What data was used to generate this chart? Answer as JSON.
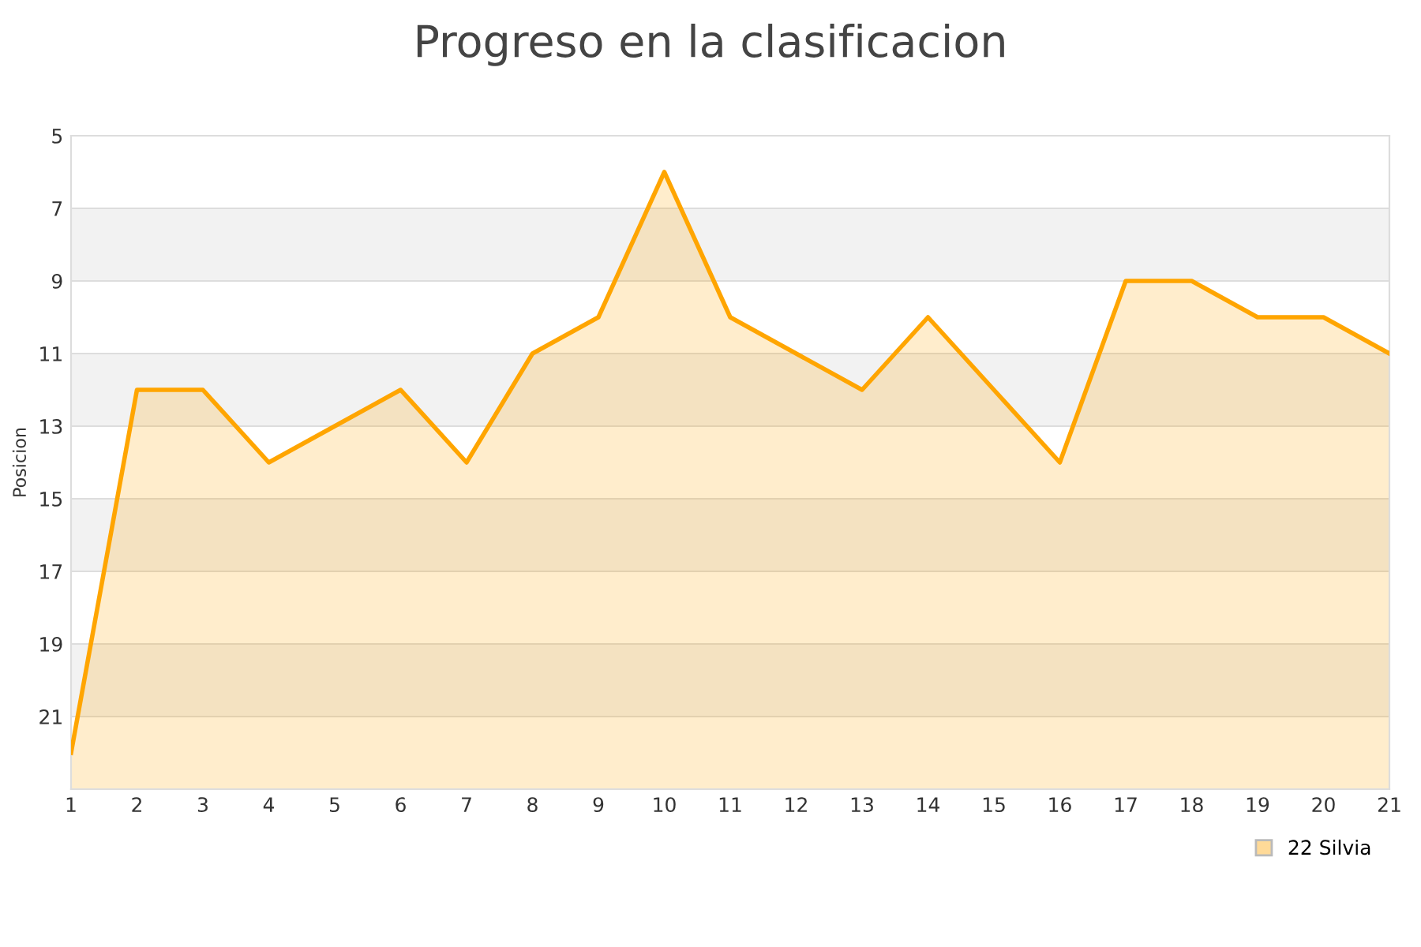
{
  "chart_data": {
    "type": "area",
    "title": "Progreso en la clasificacion",
    "ylabel": "Posicion",
    "x": [
      1,
      2,
      3,
      4,
      5,
      6,
      7,
      8,
      9,
      10,
      11,
      12,
      13,
      14,
      15,
      16,
      17,
      18,
      19,
      20,
      21
    ],
    "series": [
      {
        "name": "22 Silvia",
        "color": "#ffa500",
        "values": [
          22,
          12,
          12,
          14,
          13,
          12,
          14,
          11,
          10,
          6,
          10,
          11,
          12,
          10,
          12,
          14,
          9,
          9,
          10,
          10,
          11
        ]
      }
    ],
    "xlim": [
      1,
      21
    ],
    "xticks": [
      1,
      2,
      3,
      4,
      5,
      6,
      7,
      8,
      9,
      10,
      11,
      12,
      13,
      14,
      15,
      16,
      17,
      18,
      19,
      20,
      21
    ],
    "ylim": [
      23,
      5
    ],
    "yticks": [
      {
        "value": 23,
        "label": null
      },
      21,
      19,
      17,
      15,
      13,
      11,
      9,
      7,
      5
    ],
    "bands": [
      {
        "axis": "y",
        "from": 7,
        "to": 9,
        "color": "#f2f2f2"
      },
      {
        "axis": "y",
        "from": 11,
        "to": 13,
        "color": "#f2f2f2"
      },
      {
        "axis": "y",
        "from": 15,
        "to": 17,
        "color": "#f2f2f2"
      },
      {
        "axis": "y",
        "from": 19,
        "to": 21,
        "color": "#f2f2f2"
      }
    ],
    "grid": "y",
    "legend": "bottom right",
    "marker": "none",
    "line_style": "solid"
  }
}
